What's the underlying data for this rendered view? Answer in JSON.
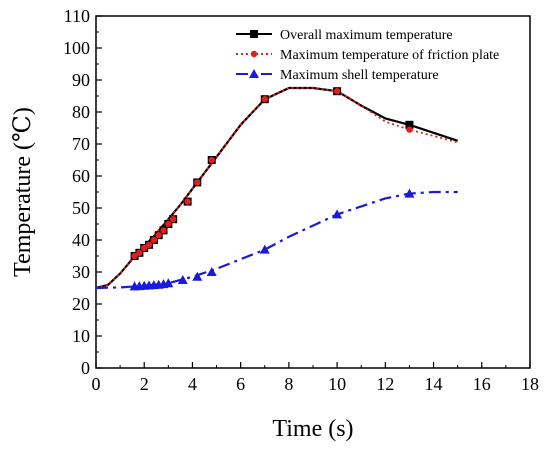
{
  "chart_data": {
    "type": "line",
    "title": "",
    "xlabel": "Time (s)",
    "ylabel": "Temperature (℃)",
    "xlim": [
      0,
      18
    ],
    "ylim": [
      0,
      110
    ],
    "x_ticks": [
      "0",
      "2",
      "4",
      "6",
      "8",
      "10",
      "12",
      "14",
      "16",
      "18"
    ],
    "y_ticks": [
      "0",
      "10",
      "20",
      "30",
      "40",
      "50",
      "60",
      "70",
      "80",
      "90",
      "100",
      "110"
    ],
    "grid": false,
    "legend_position": "top-right",
    "series": [
      {
        "name": "Overall maximum temperature",
        "color": "#000000",
        "line_style": "solid",
        "marker": "square",
        "points": [
          [
            0,
            25
          ],
          [
            0.5,
            26
          ],
          [
            1.0,
            29.5
          ],
          [
            1.5,
            34
          ],
          [
            2.0,
            38
          ],
          [
            2.5,
            42
          ],
          [
            3.0,
            46.5
          ],
          [
            3.5,
            51
          ],
          [
            4.0,
            56
          ],
          [
            4.5,
            61
          ],
          [
            5.0,
            66
          ],
          [
            6.0,
            76
          ],
          [
            7.0,
            84
          ],
          [
            8.0,
            87.5
          ],
          [
            9.0,
            87.5
          ],
          [
            10.0,
            86.5
          ],
          [
            11.0,
            82
          ],
          [
            12.0,
            78
          ],
          [
            13.0,
            76
          ],
          [
            14.0,
            73.5
          ],
          [
            15.0,
            71
          ]
        ],
        "marker_points": [
          [
            1.6,
            35
          ],
          [
            1.8,
            36
          ],
          [
            2.0,
            37.5
          ],
          [
            2.2,
            38.5
          ],
          [
            2.4,
            40
          ],
          [
            2.6,
            41.5
          ],
          [
            2.8,
            43
          ],
          [
            3.0,
            45
          ],
          [
            3.2,
            46.5
          ],
          [
            3.8,
            52
          ],
          [
            4.2,
            58
          ],
          [
            4.8,
            65
          ],
          [
            7.0,
            84
          ],
          [
            10.0,
            86.5
          ],
          [
            13.0,
            76
          ]
        ]
      },
      {
        "name": "Maximum temperature of friction plate",
        "color": "#e02020",
        "line_style": "dotted",
        "marker": "circle",
        "points": [
          [
            0,
            25
          ],
          [
            0.5,
            26
          ],
          [
            1.0,
            29.5
          ],
          [
            1.5,
            34
          ],
          [
            2.0,
            38
          ],
          [
            2.5,
            42
          ],
          [
            3.0,
            46.5
          ],
          [
            3.5,
            51
          ],
          [
            4.0,
            56
          ],
          [
            4.5,
            61
          ],
          [
            5.0,
            66
          ],
          [
            6.0,
            76
          ],
          [
            7.0,
            84
          ],
          [
            8.0,
            87.5
          ],
          [
            9.0,
            87.5
          ],
          [
            10.0,
            86.5
          ],
          [
            11.0,
            82
          ],
          [
            12.0,
            77
          ],
          [
            13.0,
            74.5
          ],
          [
            14.0,
            72.5
          ],
          [
            15.0,
            70.5
          ]
        ],
        "marker_points": [
          [
            1.6,
            35
          ],
          [
            1.8,
            36
          ],
          [
            2.0,
            37.5
          ],
          [
            2.2,
            38.5
          ],
          [
            2.4,
            40
          ],
          [
            2.6,
            41.5
          ],
          [
            2.8,
            43
          ],
          [
            3.0,
            45
          ],
          [
            3.2,
            46.5
          ],
          [
            3.8,
            52
          ],
          [
            4.2,
            58
          ],
          [
            4.8,
            65
          ],
          [
            7.0,
            84
          ],
          [
            10.0,
            86.5
          ],
          [
            13.0,
            74.5
          ]
        ]
      },
      {
        "name": "Maximum shell temperature",
        "color": "#1a1adc",
        "line_style": "dashdot",
        "marker": "triangle",
        "points": [
          [
            0,
            25
          ],
          [
            1.0,
            25.2
          ],
          [
            2.0,
            25.7
          ],
          [
            3.0,
            26.5
          ],
          [
            4.0,
            28.5
          ],
          [
            5.0,
            31
          ],
          [
            6.0,
            34
          ],
          [
            7.0,
            37
          ],
          [
            8.0,
            41
          ],
          [
            9.0,
            44.5
          ],
          [
            10.0,
            48
          ],
          [
            11.0,
            50.5
          ],
          [
            12.0,
            53
          ],
          [
            13.0,
            54.5
          ],
          [
            14.0,
            55
          ],
          [
            15.0,
            55
          ]
        ],
        "marker_points": [
          [
            1.6,
            25.5
          ],
          [
            1.8,
            25.6
          ],
          [
            2.0,
            25.7
          ],
          [
            2.2,
            25.8
          ],
          [
            2.4,
            25.9
          ],
          [
            2.6,
            26.0
          ],
          [
            2.8,
            26.2
          ],
          [
            3.0,
            26.5
          ],
          [
            3.6,
            27.5
          ],
          [
            4.2,
            28.5
          ],
          [
            4.8,
            30
          ],
          [
            7.0,
            37
          ],
          [
            10.0,
            48
          ],
          [
            13.0,
            54.5
          ]
        ]
      }
    ]
  }
}
